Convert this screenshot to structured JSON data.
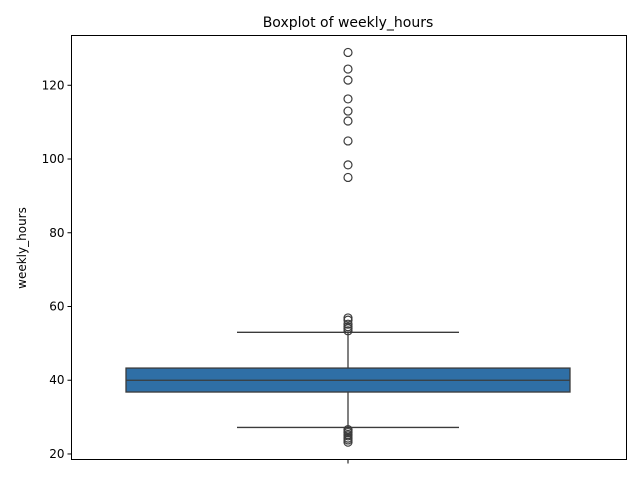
{
  "chart_data": {
    "type": "boxplot",
    "title": "Boxplot of weekly_hours",
    "xlabel": "",
    "ylabel": "weekly_hours",
    "ylim": [
      18.5,
      133.5
    ],
    "yticks": [
      20,
      40,
      60,
      80,
      100,
      120
    ],
    "grid": false,
    "legend": "none",
    "box": {
      "whisker_low": 27.2,
      "q1": 36.8,
      "median": 40.0,
      "q3": 43.3,
      "whisker_high": 53.0,
      "fill_color": "#2f6fa6",
      "line_color": "#3b3b3b"
    },
    "outliers": [
      23.2,
      23.8,
      24.3,
      24.9,
      25.3,
      25.8,
      26.2,
      26.6,
      53.4,
      54.0,
      54.5,
      55.2,
      56.3,
      56.9,
      95.0,
      98.4,
      104.9,
      110.3,
      113.0,
      116.3,
      121.4,
      124.4,
      128.9
    ]
  }
}
